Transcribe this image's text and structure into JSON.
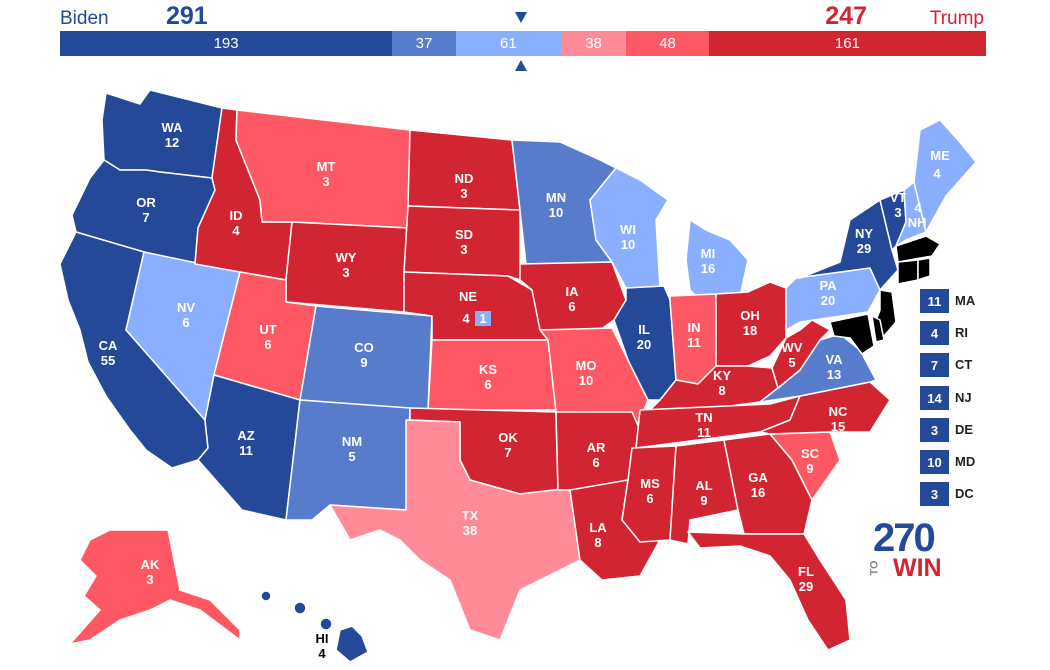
{
  "header": {
    "biden_name": "Biden",
    "biden_total": "291",
    "trump_name": "Trump",
    "trump_total": "247"
  },
  "summary_bar": [
    {
      "value": "193",
      "color": "#244999",
      "votes": 193
    },
    {
      "value": "37",
      "color": "#577ccc",
      "votes": 37
    },
    {
      "value": "61",
      "color": "#8aafff",
      "votes": 61
    },
    {
      "value": "38",
      "color": "#ff8b98",
      "votes": 38
    },
    {
      "value": "48",
      "color": "#ff5865",
      "votes": 48
    },
    {
      "value": "161",
      "color": "#d22532",
      "votes": 161
    }
  ],
  "colors": {
    "safe_d": "#244999",
    "likely_d": "#577ccc",
    "lean_d": "#8aafff",
    "lean_r": "#ff8b98",
    "likely_r": "#ff5865",
    "safe_r": "#d22532"
  },
  "states": {
    "WA": {
      "abbr": "WA",
      "ev": "12",
      "rating": "safe_d"
    },
    "OR": {
      "abbr": "OR",
      "ev": "7",
      "rating": "safe_d"
    },
    "CA": {
      "abbr": "CA",
      "ev": "55",
      "rating": "safe_d"
    },
    "NV": {
      "abbr": "NV",
      "ev": "6",
      "rating": "lean_d"
    },
    "ID": {
      "abbr": "ID",
      "ev": "4",
      "rating": "safe_r"
    },
    "MT": {
      "abbr": "MT",
      "ev": "3",
      "rating": "likely_r"
    },
    "WY": {
      "abbr": "WY",
      "ev": "3",
      "rating": "safe_r"
    },
    "UT": {
      "abbr": "UT",
      "ev": "6",
      "rating": "likely_r"
    },
    "AZ": {
      "abbr": "AZ",
      "ev": "11",
      "rating": "safe_d"
    },
    "CO": {
      "abbr": "CO",
      "ev": "9",
      "rating": "likely_d"
    },
    "NM": {
      "abbr": "NM",
      "ev": "5",
      "rating": "likely_d"
    },
    "ND": {
      "abbr": "ND",
      "ev": "3",
      "rating": "safe_r"
    },
    "SD": {
      "abbr": "SD",
      "ev": "3",
      "rating": "safe_r"
    },
    "NE": {
      "abbr": "NE",
      "ev": "4",
      "rating": "safe_r",
      "district_ev": "1"
    },
    "KS": {
      "abbr": "KS",
      "ev": "6",
      "rating": "likely_r"
    },
    "OK": {
      "abbr": "OK",
      "ev": "7",
      "rating": "safe_r"
    },
    "TX": {
      "abbr": "TX",
      "ev": "38",
      "rating": "lean_r"
    },
    "MN": {
      "abbr": "MN",
      "ev": "10",
      "rating": "likely_d"
    },
    "IA": {
      "abbr": "IA",
      "ev": "6",
      "rating": "safe_r"
    },
    "MO": {
      "abbr": "MO",
      "ev": "10",
      "rating": "likely_r"
    },
    "AR": {
      "abbr": "AR",
      "ev": "6",
      "rating": "safe_r"
    },
    "LA": {
      "abbr": "LA",
      "ev": "8",
      "rating": "safe_r"
    },
    "WI": {
      "abbr": "WI",
      "ev": "10",
      "rating": "lean_d"
    },
    "IL": {
      "abbr": "IL",
      "ev": "20",
      "rating": "safe_d"
    },
    "MI": {
      "abbr": "MI",
      "ev": "16",
      "rating": "lean_d"
    },
    "IN": {
      "abbr": "IN",
      "ev": "11",
      "rating": "likely_r"
    },
    "OH": {
      "abbr": "OH",
      "ev": "18",
      "rating": "safe_r"
    },
    "KY": {
      "abbr": "KY",
      "ev": "8",
      "rating": "safe_r"
    },
    "TN": {
      "abbr": "TN",
      "ev": "11",
      "rating": "safe_r"
    },
    "MS": {
      "abbr": "MS",
      "ev": "6",
      "rating": "safe_r"
    },
    "AL": {
      "abbr": "AL",
      "ev": "9",
      "rating": "safe_r"
    },
    "GA": {
      "abbr": "GA",
      "ev": "16",
      "rating": "safe_r"
    },
    "FL": {
      "abbr": "FL",
      "ev": "29",
      "rating": "safe_r"
    },
    "SC": {
      "abbr": "SC",
      "ev": "9",
      "rating": "likely_r"
    },
    "NC": {
      "abbr": "NC",
      "ev": "15",
      "rating": "safe_r"
    },
    "VA": {
      "abbr": "VA",
      "ev": "13",
      "rating": "likely_d"
    },
    "WV": {
      "abbr": "WV",
      "ev": "5",
      "rating": "safe_r"
    },
    "PA": {
      "abbr": "PA",
      "ev": "20",
      "rating": "lean_d"
    },
    "NY": {
      "abbr": "NY",
      "ev": "29",
      "rating": "safe_d"
    },
    "VT": {
      "abbr": "VT",
      "ev": "3",
      "rating": "safe_d"
    },
    "NH": {
      "abbr": "NH",
      "ev": "4",
      "rating": "lean_d"
    },
    "ME": {
      "abbr": "ME",
      "ev": "4",
      "rating": "lean_d"
    },
    "AK": {
      "abbr": "AK",
      "ev": "3",
      "rating": "likely_r"
    },
    "HI": {
      "abbr": "HI",
      "ev": "4",
      "rating": "safe_d"
    }
  },
  "northeast_boxes": [
    {
      "abbr": "MA",
      "ev": "11",
      "rating": "safe_d"
    },
    {
      "abbr": "RI",
      "ev": "4",
      "rating": "safe_d"
    },
    {
      "abbr": "CT",
      "ev": "7",
      "rating": "safe_d"
    },
    {
      "abbr": "NJ",
      "ev": "14",
      "rating": "safe_d"
    },
    {
      "abbr": "DE",
      "ev": "3",
      "rating": "safe_d"
    },
    {
      "abbr": "MD",
      "ev": "10",
      "rating": "safe_d"
    },
    {
      "abbr": "DC",
      "ev": "3",
      "rating": "safe_d"
    }
  ],
  "logo": {
    "number": "270",
    "to": "TO",
    "win": "WIN"
  }
}
